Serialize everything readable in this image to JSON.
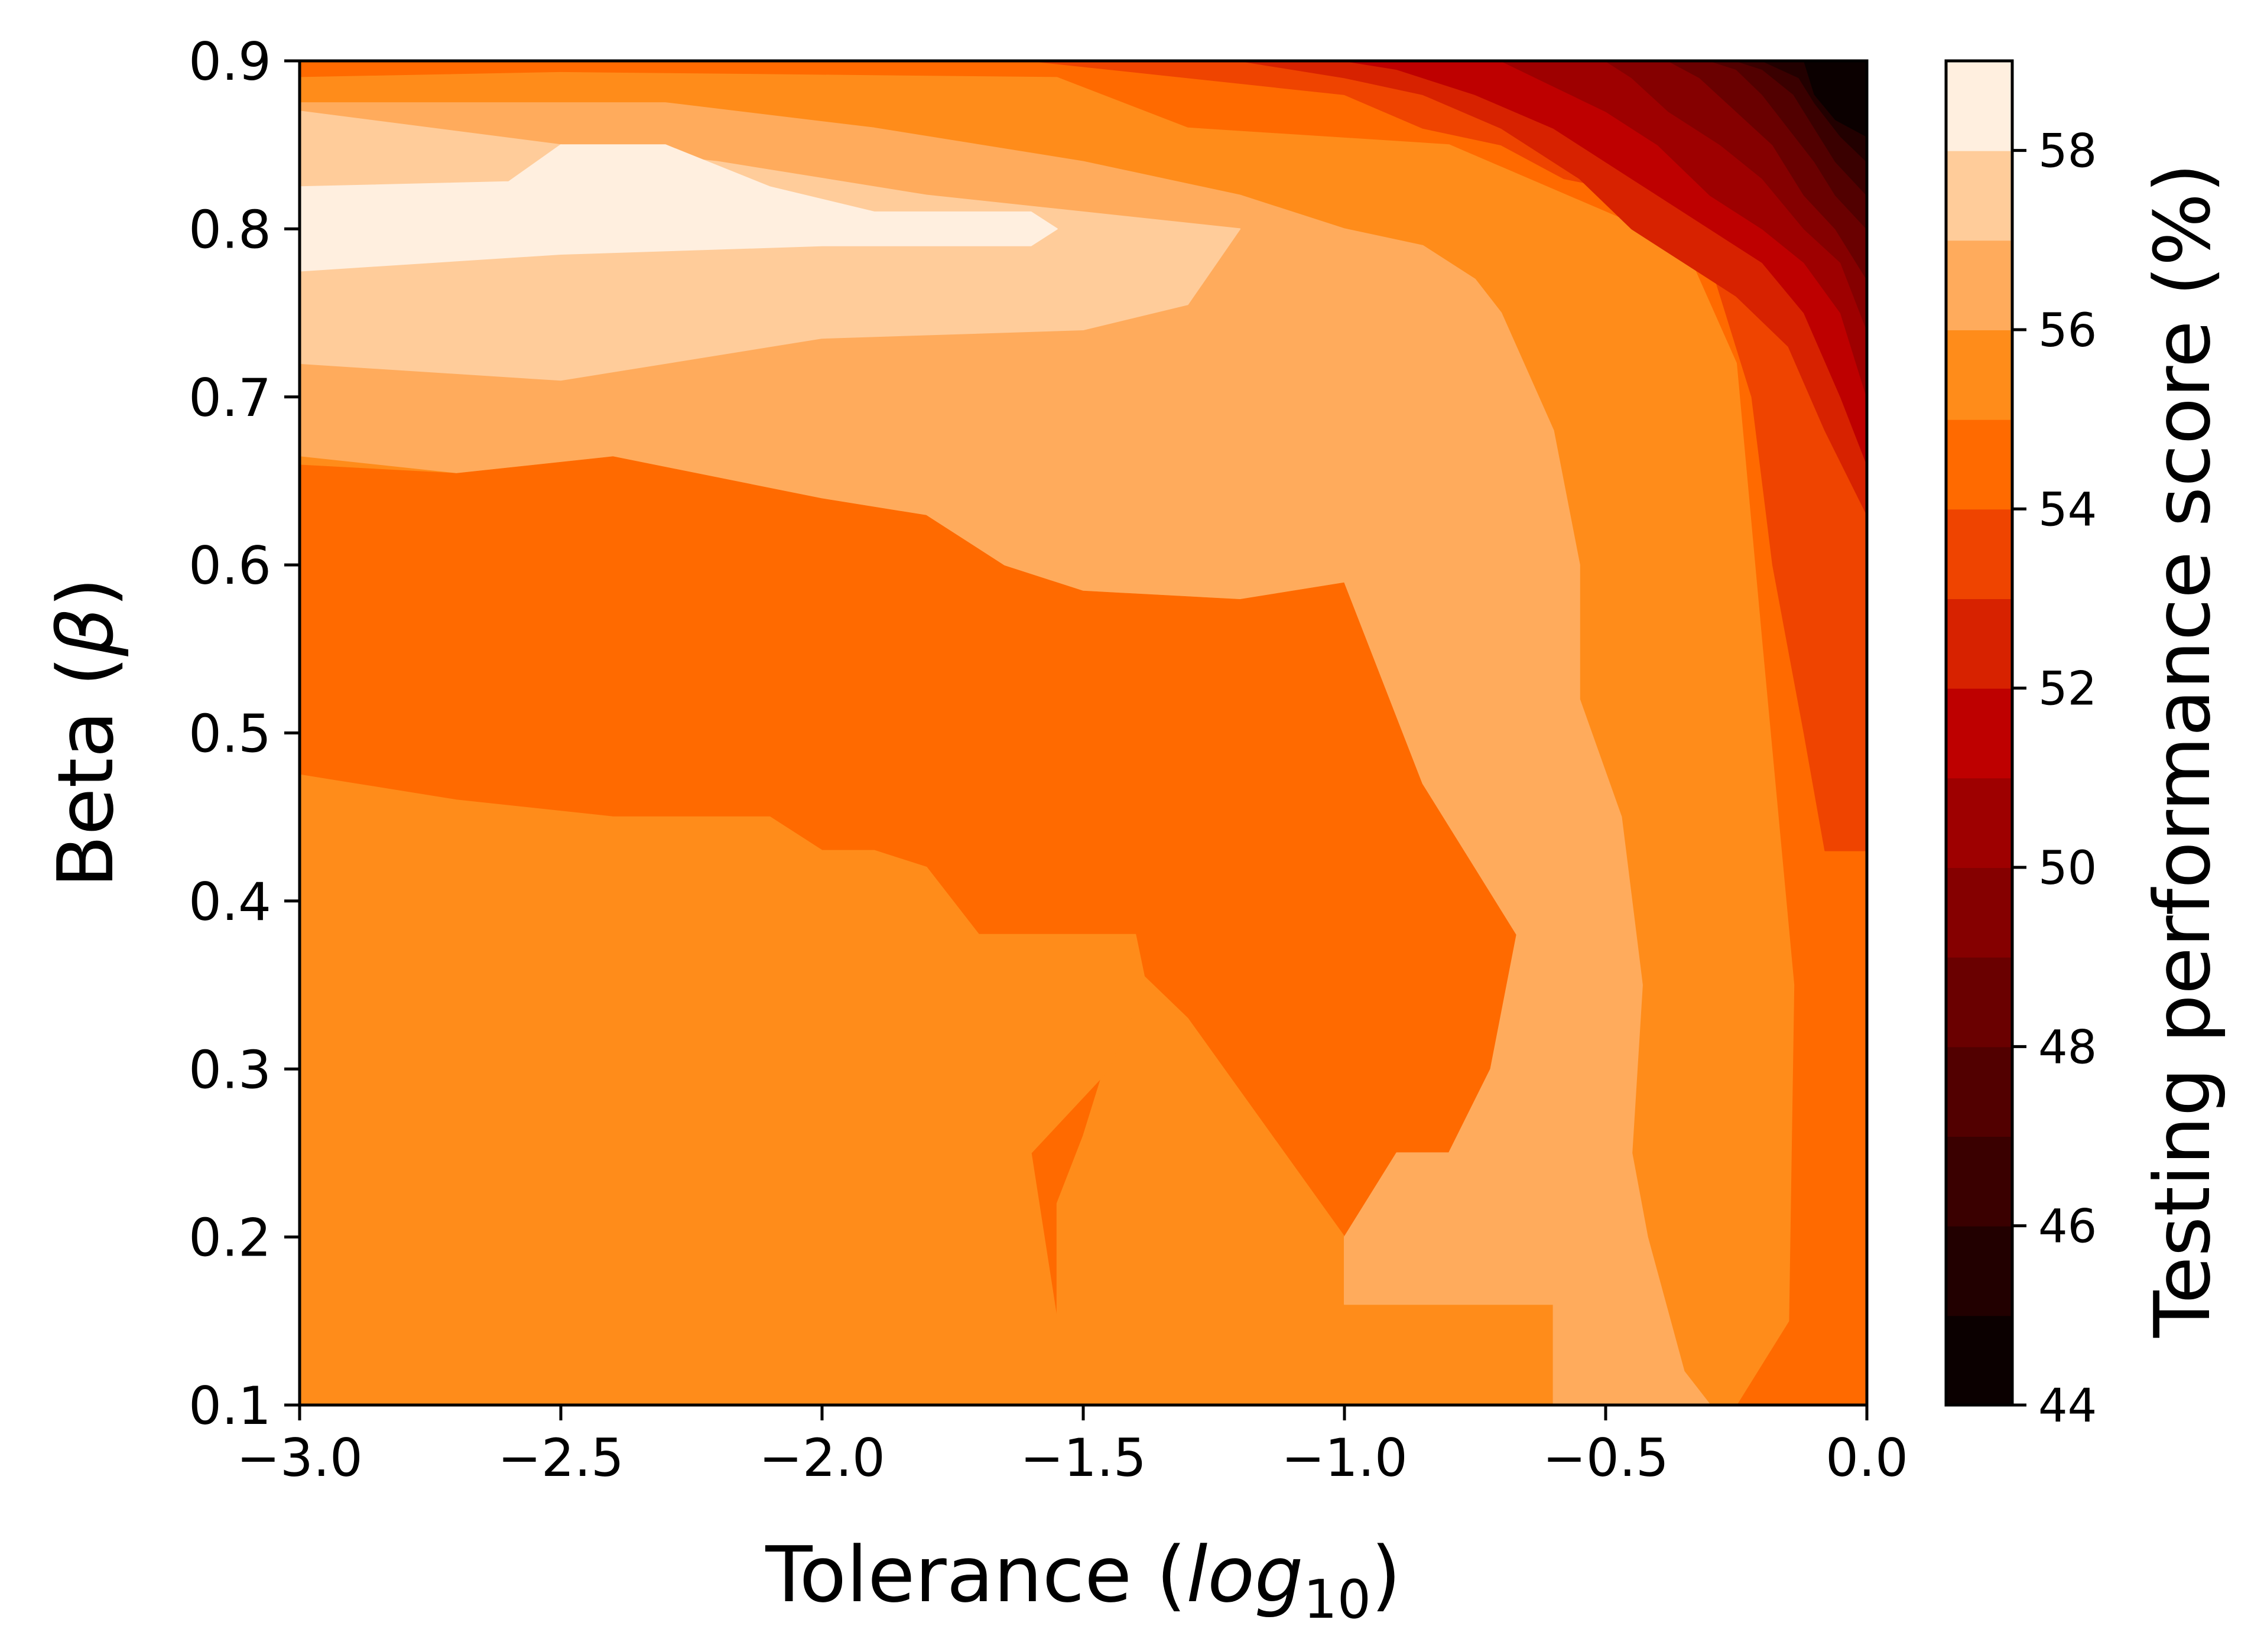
{
  "chart_data": {
    "type": "heatmap",
    "subtype": "filled-contour",
    "title": "",
    "xlabel": "Tolerance (log10)",
    "xlabel_parts": {
      "prefix": "Tolerance (",
      "var": "log",
      "sub": "10",
      "suffix": ")"
    },
    "ylabel": "Beta (β)",
    "ylabel_parts": {
      "prefix": "Beta (",
      "var": "β",
      "suffix": ")"
    },
    "xlim": [
      -3.0,
      0.0
    ],
    "ylim": [
      0.1,
      0.9
    ],
    "x_ticks": [
      -3.0,
      -2.5,
      -2.0,
      -1.5,
      -1.0,
      -0.5,
      0.0
    ],
    "x_tick_labels": [
      "−3.0",
      "−2.5",
      "−2.0",
      "−1.5",
      "−1.0",
      "−0.5",
      "0.0"
    ],
    "y_ticks": [
      0.1,
      0.2,
      0.3,
      0.4,
      0.5,
      0.6,
      0.7,
      0.8,
      0.9
    ],
    "y_tick_labels": [
      "0.1",
      "0.2",
      "0.3",
      "0.4",
      "0.5",
      "0.6",
      "0.7",
      "0.8",
      "0.9"
    ],
    "grid": false,
    "colormap": "gist_heat",
    "colorbar": {
      "label": "Testing performance score (%)",
      "range": [
        44,
        59
      ],
      "ticks": [
        44,
        46,
        48,
        50,
        52,
        54,
        56,
        58
      ],
      "tick_labels": [
        "44",
        "46",
        "48",
        "50",
        "52",
        "54",
        "56",
        "58"
      ],
      "levels": [
        {
          "from": 44,
          "to": 45,
          "color": "#0b0000"
        },
        {
          "from": 45,
          "to": 46,
          "color": "#220000"
        },
        {
          "from": 46,
          "to": 47,
          "color": "#3a0000"
        },
        {
          "from": 47,
          "to": 48,
          "color": "#520000"
        },
        {
          "from": 48,
          "to": 49,
          "color": "#6a0000"
        },
        {
          "from": 49,
          "to": 50,
          "color": "#850000"
        },
        {
          "from": 50,
          "to": 51,
          "color": "#9e0000"
        },
        {
          "from": 51,
          "to": 52,
          "color": "#be0000"
        },
        {
          "from": 52,
          "to": 53,
          "color": "#d72200"
        },
        {
          "from": 53,
          "to": 54,
          "color": "#ef4400"
        },
        {
          "from": 54,
          "to": 55,
          "color": "#ff6a00"
        },
        {
          "from": 55,
          "to": 56,
          "color": "#ff8c1a"
        },
        {
          "from": 56,
          "to": 57,
          "color": "#ffab5c"
        },
        {
          "from": 57,
          "to": 58,
          "color": "#ffcc9a"
        },
        {
          "from": 58,
          "to": 59,
          "color": "#ffefdf"
        }
      ]
    },
    "regions": [
      {
        "level": 54,
        "points": [
          [
            -3.0,
            0.1
          ],
          [
            0.0,
            0.1
          ],
          [
            0.0,
            0.9
          ],
          [
            -3.0,
            0.9
          ]
        ]
      },
      {
        "level": 55,
        "points": [
          [
            -1.55,
            0.1
          ],
          [
            -0.25,
            0.1
          ],
          [
            -0.15,
            0.15
          ],
          [
            -0.14,
            0.35
          ],
          [
            -0.2,
            0.55
          ],
          [
            -0.25,
            0.72
          ],
          [
            -0.35,
            0.79
          ],
          [
            -0.8,
            0.85
          ],
          [
            -1.3,
            0.86
          ],
          [
            -1.55,
            0.89
          ],
          [
            -2.5,
            0.893
          ],
          [
            -3.0,
            0.89
          ],
          [
            -3.0,
            0.66
          ],
          [
            -2.7,
            0.655
          ],
          [
            -2.4,
            0.665
          ],
          [
            -2.0,
            0.64
          ],
          [
            -1.8,
            0.63
          ],
          [
            -1.65,
            0.6
          ],
          [
            -1.5,
            0.585
          ],
          [
            -1.2,
            0.58
          ],
          [
            -1.0,
            0.59
          ],
          [
            -0.9,
            0.55
          ],
          [
            -0.8,
            0.45
          ],
          [
            -0.7,
            0.4
          ],
          [
            -0.65,
            0.37
          ],
          [
            -0.7,
            0.28
          ],
          [
            -0.75,
            0.25
          ],
          [
            -0.9,
            0.23
          ],
          [
            -1.0,
            0.2
          ],
          [
            -1.3,
            0.33
          ],
          [
            -1.4,
            0.36
          ],
          [
            -1.5,
            0.26
          ],
          [
            -1.55,
            0.22
          ]
        ]
      },
      {
        "level": 55,
        "points": [
          [
            -3.0,
            0.1
          ],
          [
            -1.55,
            0.1
          ],
          [
            -1.55,
            0.15
          ],
          [
            -1.6,
            0.25
          ],
          [
            -1.45,
            0.3
          ],
          [
            -1.38,
            0.35
          ],
          [
            -1.4,
            0.38
          ],
          [
            -1.7,
            0.38
          ],
          [
            -1.8,
            0.42
          ],
          [
            -1.9,
            0.43
          ],
          [
            -2.0,
            0.43
          ],
          [
            -2.1,
            0.45
          ],
          [
            -2.4,
            0.45
          ],
          [
            -2.7,
            0.46
          ],
          [
            -2.9,
            0.47
          ],
          [
            -3.0,
            0.475
          ]
        ]
      },
      {
        "level": 56,
        "points": [
          [
            -0.6,
            0.1
          ],
          [
            -0.3,
            0.1
          ],
          [
            -0.35,
            0.12
          ],
          [
            -0.42,
            0.2
          ],
          [
            -0.45,
            0.25
          ],
          [
            -0.43,
            0.35
          ],
          [
            -0.47,
            0.45
          ],
          [
            -0.55,
            0.52
          ],
          [
            -0.55,
            0.6
          ],
          [
            -0.6,
            0.68
          ],
          [
            -0.7,
            0.75
          ],
          [
            -0.75,
            0.77
          ],
          [
            -0.85,
            0.79
          ],
          [
            -1.0,
            0.8
          ],
          [
            -1.2,
            0.82
          ],
          [
            -1.5,
            0.84
          ],
          [
            -1.9,
            0.86
          ],
          [
            -2.3,
            0.875
          ],
          [
            -3.0,
            0.875
          ],
          [
            -3.0,
            0.665
          ],
          [
            -2.7,
            0.655
          ],
          [
            -2.4,
            0.665
          ],
          [
            -2.0,
            0.64
          ],
          [
            -1.8,
            0.63
          ],
          [
            -1.65,
            0.6
          ],
          [
            -1.5,
            0.585
          ],
          [
            -1.2,
            0.58
          ],
          [
            -1.0,
            0.59
          ],
          [
            -0.95,
            0.55
          ],
          [
            -0.85,
            0.47
          ],
          [
            -0.75,
            0.42
          ],
          [
            -0.67,
            0.38
          ],
          [
            -0.72,
            0.3
          ],
          [
            -0.8,
            0.25
          ],
          [
            -0.9,
            0.25
          ],
          [
            -1.0,
            0.2
          ],
          [
            -1.0,
            0.16
          ],
          [
            -0.6,
            0.16
          ]
        ]
      },
      {
        "level": 57,
        "points": [
          [
            -3.0,
            0.72
          ],
          [
            -2.5,
            0.71
          ],
          [
            -2.0,
            0.735
          ],
          [
            -1.5,
            0.74
          ],
          [
            -1.3,
            0.755
          ],
          [
            -1.2,
            0.8
          ],
          [
            -1.5,
            0.81
          ],
          [
            -1.8,
            0.82
          ],
          [
            -2.2,
            0.84
          ],
          [
            -2.5,
            0.85
          ],
          [
            -3.0,
            0.87
          ]
        ]
      },
      {
        "level": 58,
        "points": [
          [
            -3.0,
            0.775
          ],
          [
            -2.5,
            0.785
          ],
          [
            -2.0,
            0.79
          ],
          [
            -1.6,
            0.79
          ],
          [
            -1.55,
            0.8
          ],
          [
            -1.6,
            0.81
          ],
          [
            -1.9,
            0.81
          ],
          [
            -2.1,
            0.825
          ],
          [
            -2.3,
            0.85
          ],
          [
            -2.5,
            0.85
          ],
          [
            -2.6,
            0.828
          ],
          [
            -3.0,
            0.825
          ]
        ]
      },
      {
        "level": 53,
        "points": [
          [
            0.0,
            0.43
          ],
          [
            -0.08,
            0.43
          ],
          [
            -0.12,
            0.5
          ],
          [
            -0.18,
            0.6
          ],
          [
            -0.22,
            0.7
          ],
          [
            -0.3,
            0.78
          ],
          [
            -0.42,
            0.82
          ],
          [
            -0.58,
            0.83
          ],
          [
            -0.7,
            0.85
          ],
          [
            -0.85,
            0.86
          ],
          [
            -1.0,
            0.88
          ],
          [
            -1.3,
            0.89
          ],
          [
            -1.6,
            0.9
          ],
          [
            0.0,
            0.9
          ]
        ]
      },
      {
        "level": 52,
        "points": [
          [
            0.0,
            0.63
          ],
          [
            -0.08,
            0.68
          ],
          [
            -0.15,
            0.73
          ],
          [
            -0.25,
            0.76
          ],
          [
            -0.35,
            0.78
          ],
          [
            -0.45,
            0.8
          ],
          [
            -0.55,
            0.83
          ],
          [
            -0.7,
            0.86
          ],
          [
            -0.85,
            0.88
          ],
          [
            -1.0,
            0.89
          ],
          [
            -1.2,
            0.9
          ],
          [
            0.0,
            0.9
          ]
        ]
      },
      {
        "level": 51,
        "points": [
          [
            0.0,
            0.66
          ],
          [
            -0.05,
            0.7
          ],
          [
            -0.12,
            0.75
          ],
          [
            -0.2,
            0.78
          ],
          [
            -0.3,
            0.8
          ],
          [
            -0.45,
            0.83
          ],
          [
            -0.6,
            0.86
          ],
          [
            -0.75,
            0.88
          ],
          [
            -0.9,
            0.895
          ],
          [
            -1.0,
            0.9
          ],
          [
            0.0,
            0.9
          ]
        ]
      },
      {
        "level": 50,
        "points": [
          [
            0.0,
            0.7
          ],
          [
            -0.05,
            0.75
          ],
          [
            -0.12,
            0.78
          ],
          [
            -0.2,
            0.8
          ],
          [
            -0.3,
            0.82
          ],
          [
            -0.4,
            0.85
          ],
          [
            -0.5,
            0.87
          ],
          [
            -0.6,
            0.885
          ],
          [
            -0.7,
            0.9
          ],
          [
            0.0,
            0.9
          ]
        ]
      },
      {
        "level": 49,
        "points": [
          [
            0.0,
            0.74
          ],
          [
            -0.05,
            0.78
          ],
          [
            -0.12,
            0.8
          ],
          [
            -0.2,
            0.83
          ],
          [
            -0.28,
            0.85
          ],
          [
            -0.38,
            0.87
          ],
          [
            -0.45,
            0.89
          ],
          [
            -0.5,
            0.9
          ],
          [
            0.0,
            0.9
          ]
        ]
      },
      {
        "level": 48,
        "points": [
          [
            0.0,
            0.77
          ],
          [
            -0.06,
            0.8
          ],
          [
            -0.12,
            0.82
          ],
          [
            -0.18,
            0.85
          ],
          [
            -0.25,
            0.87
          ],
          [
            -0.32,
            0.89
          ],
          [
            -0.38,
            0.9
          ],
          [
            0.0,
            0.9
          ]
        ]
      },
      {
        "level": 47,
        "points": [
          [
            0.0,
            0.8
          ],
          [
            -0.06,
            0.82
          ],
          [
            -0.1,
            0.84
          ],
          [
            -0.15,
            0.86
          ],
          [
            -0.2,
            0.88
          ],
          [
            -0.25,
            0.895
          ],
          [
            -0.3,
            0.9
          ],
          [
            0.0,
            0.9
          ]
        ]
      },
      {
        "level": 46,
        "points": [
          [
            0.0,
            0.82
          ],
          [
            -0.06,
            0.84
          ],
          [
            -0.1,
            0.86
          ],
          [
            -0.14,
            0.88
          ],
          [
            -0.2,
            0.895
          ],
          [
            -0.25,
            0.9
          ],
          [
            0.0,
            0.9
          ]
        ]
      },
      {
        "level": 45,
        "points": [
          [
            0.0,
            0.84
          ],
          [
            -0.05,
            0.855
          ],
          [
            -0.1,
            0.875
          ],
          [
            -0.13,
            0.89
          ],
          [
            -0.2,
            0.9
          ],
          [
            0.0,
            0.9
          ]
        ]
      },
      {
        "level": 44,
        "points": [
          [
            0.0,
            0.855
          ],
          [
            -0.06,
            0.865
          ],
          [
            -0.1,
            0.88
          ],
          [
            -0.12,
            0.9
          ],
          [
            0.0,
            0.9
          ]
        ]
      }
    ]
  }
}
